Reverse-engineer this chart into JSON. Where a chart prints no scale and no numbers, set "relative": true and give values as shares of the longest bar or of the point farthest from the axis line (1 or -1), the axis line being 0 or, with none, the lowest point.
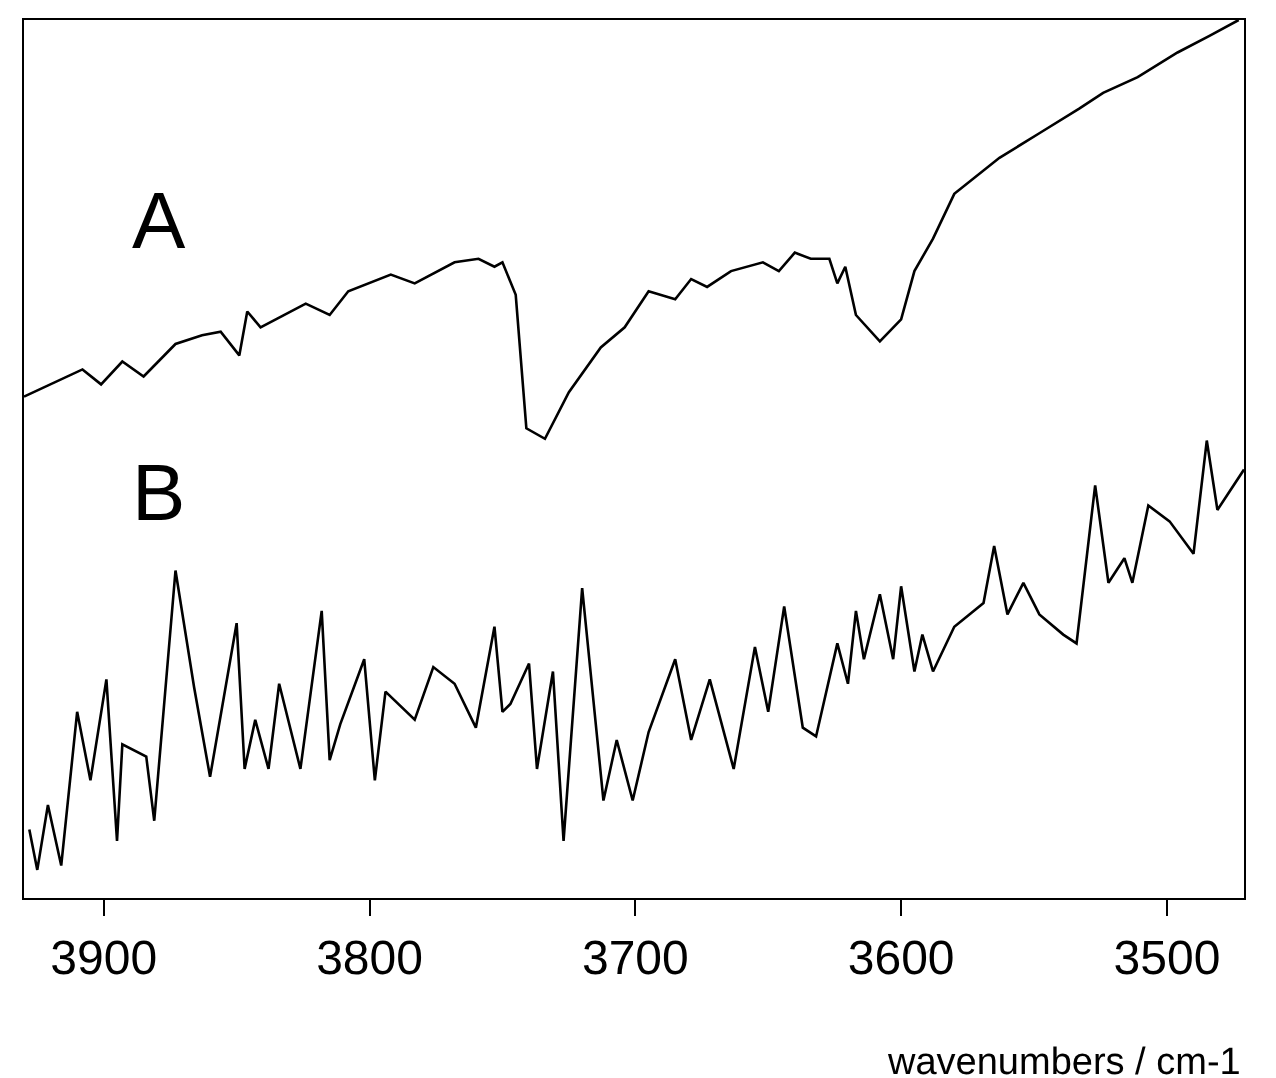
{
  "chart_data": {
    "type": "line",
    "relative": true,
    "xlabel": "wavenumbers / cm-1",
    "xlim": [
      3930,
      3471
    ],
    "xticks": [
      3900,
      3800,
      3700,
      3600,
      3500
    ],
    "tick_labels": "x",
    "grid": false,
    "legend": false,
    "series": [
      {
        "name": "A",
        "color": "#000000",
        "x": [
          3930,
          3908,
          3901,
          3893,
          3885,
          3873,
          3863,
          3856,
          3849,
          3846,
          3841,
          3824,
          3815,
          3808,
          3792,
          3783,
          3768,
          3759,
          3753,
          3750,
          3745,
          3741,
          3734,
          3725,
          3713,
          3704,
          3695,
          3685,
          3679,
          3673,
          3664,
          3652,
          3646,
          3640,
          3634,
          3627,
          3624,
          3621,
          3617,
          3608,
          3600,
          3595,
          3588,
          3580,
          3563,
          3548,
          3533,
          3524,
          3511,
          3496,
          3484,
          3473
        ],
        "values": [
          0.571,
          0.602,
          0.585,
          0.611,
          0.594,
          0.631,
          0.641,
          0.645,
          0.618,
          0.668,
          0.65,
          0.677,
          0.664,
          0.691,
          0.71,
          0.7,
          0.724,
          0.728,
          0.719,
          0.724,
          0.687,
          0.535,
          0.523,
          0.576,
          0.627,
          0.65,
          0.691,
          0.682,
          0.705,
          0.696,
          0.714,
          0.724,
          0.714,
          0.735,
          0.728,
          0.728,
          0.7,
          0.719,
          0.664,
          0.634,
          0.659,
          0.714,
          0.751,
          0.802,
          0.843,
          0.871,
          0.899,
          0.917,
          0.935,
          0.963,
          0.982,
          1.0
        ]
      },
      {
        "name": "B",
        "color": "#000000",
        "x": [
          3928,
          3925,
          3921,
          3916,
          3910,
          3905,
          3899,
          3895,
          3893,
          3884,
          3881,
          3873,
          3866,
          3860,
          3850,
          3847,
          3843,
          3838,
          3834,
          3826,
          3818,
          3815,
          3811,
          3802,
          3798,
          3794,
          3783,
          3776,
          3768,
          3760,
          3753,
          3750,
          3747,
          3740,
          3737,
          3731,
          3727,
          3720,
          3712,
          3707,
          3701,
          3695,
          3685,
          3679,
          3672,
          3663,
          3655,
          3650,
          3644,
          3637,
          3632,
          3624,
          3620,
          3617,
          3614,
          3608,
          3603,
          3600,
          3595,
          3592,
          3588,
          3580,
          3569,
          3565,
          3560,
          3554,
          3548,
          3539,
          3534,
          3527,
          3522,
          3516,
          3513,
          3507,
          3499,
          3490,
          3485,
          3481,
          3471
        ],
        "values": [
          0.078,
          0.032,
          0.106,
          0.037,
          0.212,
          0.134,
          0.249,
          0.065,
          0.175,
          0.161,
          0.088,
          0.373,
          0.24,
          0.138,
          0.313,
          0.147,
          0.203,
          0.147,
          0.244,
          0.147,
          0.327,
          0.157,
          0.198,
          0.272,
          0.134,
          0.235,
          0.203,
          0.263,
          0.244,
          0.194,
          0.309,
          0.212,
          0.221,
          0.267,
          0.147,
          0.258,
          0.065,
          0.353,
          0.111,
          0.18,
          0.111,
          0.189,
          0.272,
          0.18,
          0.249,
          0.147,
          0.286,
          0.212,
          0.332,
          0.194,
          0.184,
          0.29,
          0.244,
          0.327,
          0.272,
          0.346,
          0.272,
          0.355,
          0.258,
          0.3,
          0.258,
          0.309,
          0.336,
          0.401,
          0.323,
          0.359,
          0.323,
          0.3,
          0.29,
          0.47,
          0.359,
          0.387,
          0.359,
          0.447,
          0.429,
          0.392,
          0.521,
          0.442,
          0.488
        ]
      }
    ]
  }
}
